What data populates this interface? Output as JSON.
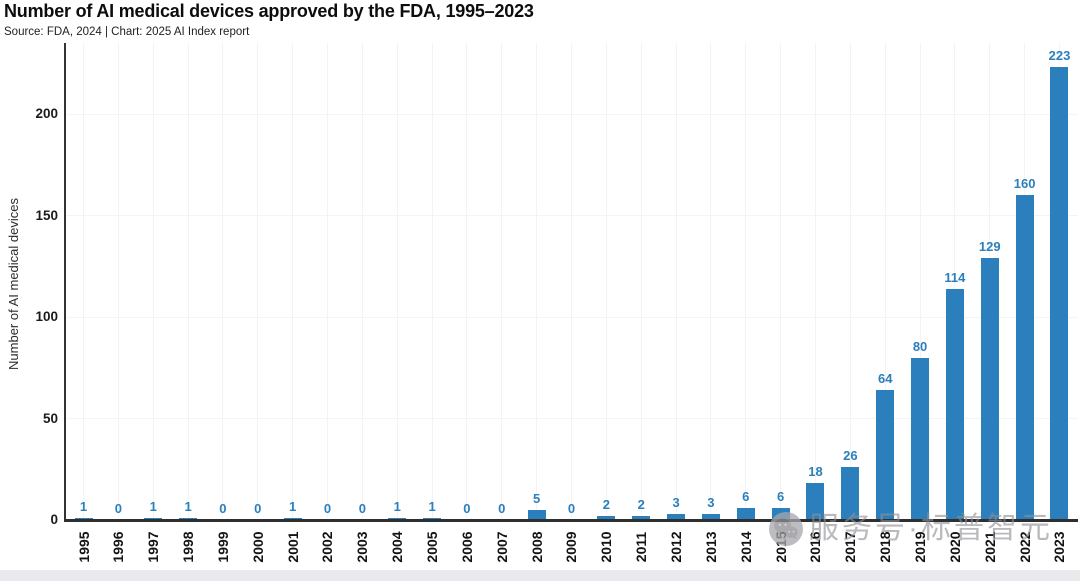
{
  "header": {
    "title": "Number of AI medical devices approved by the FDA, 1995–2023",
    "source_line": "Source: FDA, 2024 | Chart: 2025 AI Index report"
  },
  "chart_data": {
    "type": "bar",
    "title": "Number of AI medical devices approved by the FDA, 1995–2023",
    "categories": [
      "1995",
      "1996",
      "1997",
      "1998",
      "1999",
      "2000",
      "2001",
      "2002",
      "2003",
      "2004",
      "2005",
      "2006",
      "2007",
      "2008",
      "2009",
      "2010",
      "2011",
      "2012",
      "2013",
      "2014",
      "2015",
      "2016",
      "2017",
      "2018",
      "2019",
      "2020",
      "2021",
      "2022",
      "2023"
    ],
    "values": [
      1,
      0,
      1,
      1,
      0,
      0,
      1,
      0,
      0,
      1,
      1,
      0,
      0,
      5,
      0,
      2,
      2,
      3,
      3,
      6,
      6,
      18,
      26,
      64,
      80,
      114,
      129,
      160,
      223
    ],
    "ylabel": "Number of AI medical devices",
    "xlabel": "",
    "yticks": [
      0,
      50,
      100,
      150,
      200
    ],
    "ylim": [
      0,
      234
    ],
    "grid": true,
    "legend": "none",
    "value_labels_shown": true,
    "bar_color": "#2a7fbc",
    "value_label_color": "#2a7fbc"
  },
  "watermark": {
    "icon": "wechat-icon",
    "text": "服务号·标普智元"
  }
}
